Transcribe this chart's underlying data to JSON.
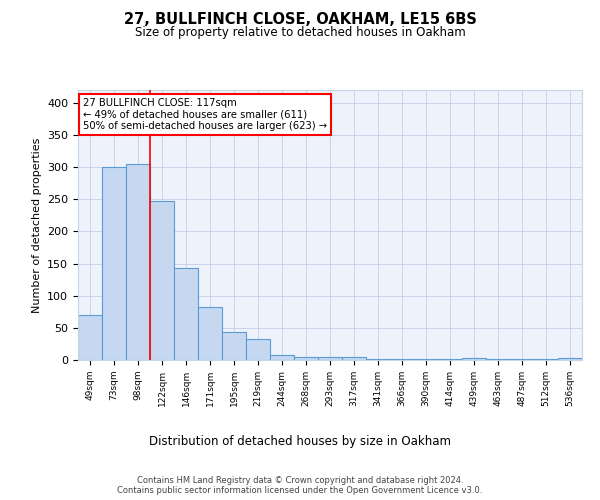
{
  "title1": "27, BULLFINCH CLOSE, OAKHAM, LE15 6BS",
  "title2": "Size of property relative to detached houses in Oakham",
  "xlabel": "Distribution of detached houses by size in Oakham",
  "ylabel": "Number of detached properties",
  "bar_labels": [
    "49sqm",
    "73sqm",
    "98sqm",
    "122sqm",
    "146sqm",
    "171sqm",
    "195sqm",
    "219sqm",
    "244sqm",
    "268sqm",
    "293sqm",
    "317sqm",
    "341sqm",
    "366sqm",
    "390sqm",
    "414sqm",
    "439sqm",
    "463sqm",
    "487sqm",
    "512sqm",
    "536sqm"
  ],
  "bar_values": [
    70,
    300,
    305,
    248,
    143,
    83,
    44,
    33,
    8,
    5,
    5,
    5,
    2,
    1,
    1,
    1,
    3,
    1,
    1,
    1,
    3
  ],
  "bar_color": "#c5d8f0",
  "bar_edge_color": "#5b9bd5",
  "grid_color": "#c8d4e8",
  "background_color": "#eef3fb",
  "vline_x": 2.5,
  "vline_color": "red",
  "annotation_text": "27 BULLFINCH CLOSE: 117sqm\n← 49% of detached houses are smaller (611)\n50% of semi-detached houses are larger (623) →",
  "annotation_box_color": "white",
  "annotation_box_edge": "red",
  "footnote": "Contains HM Land Registry data © Crown copyright and database right 2024.\nContains public sector information licensed under the Open Government Licence v3.0.",
  "ylim": [
    0,
    420
  ],
  "yticks": [
    0,
    50,
    100,
    150,
    200,
    250,
    300,
    350,
    400
  ]
}
